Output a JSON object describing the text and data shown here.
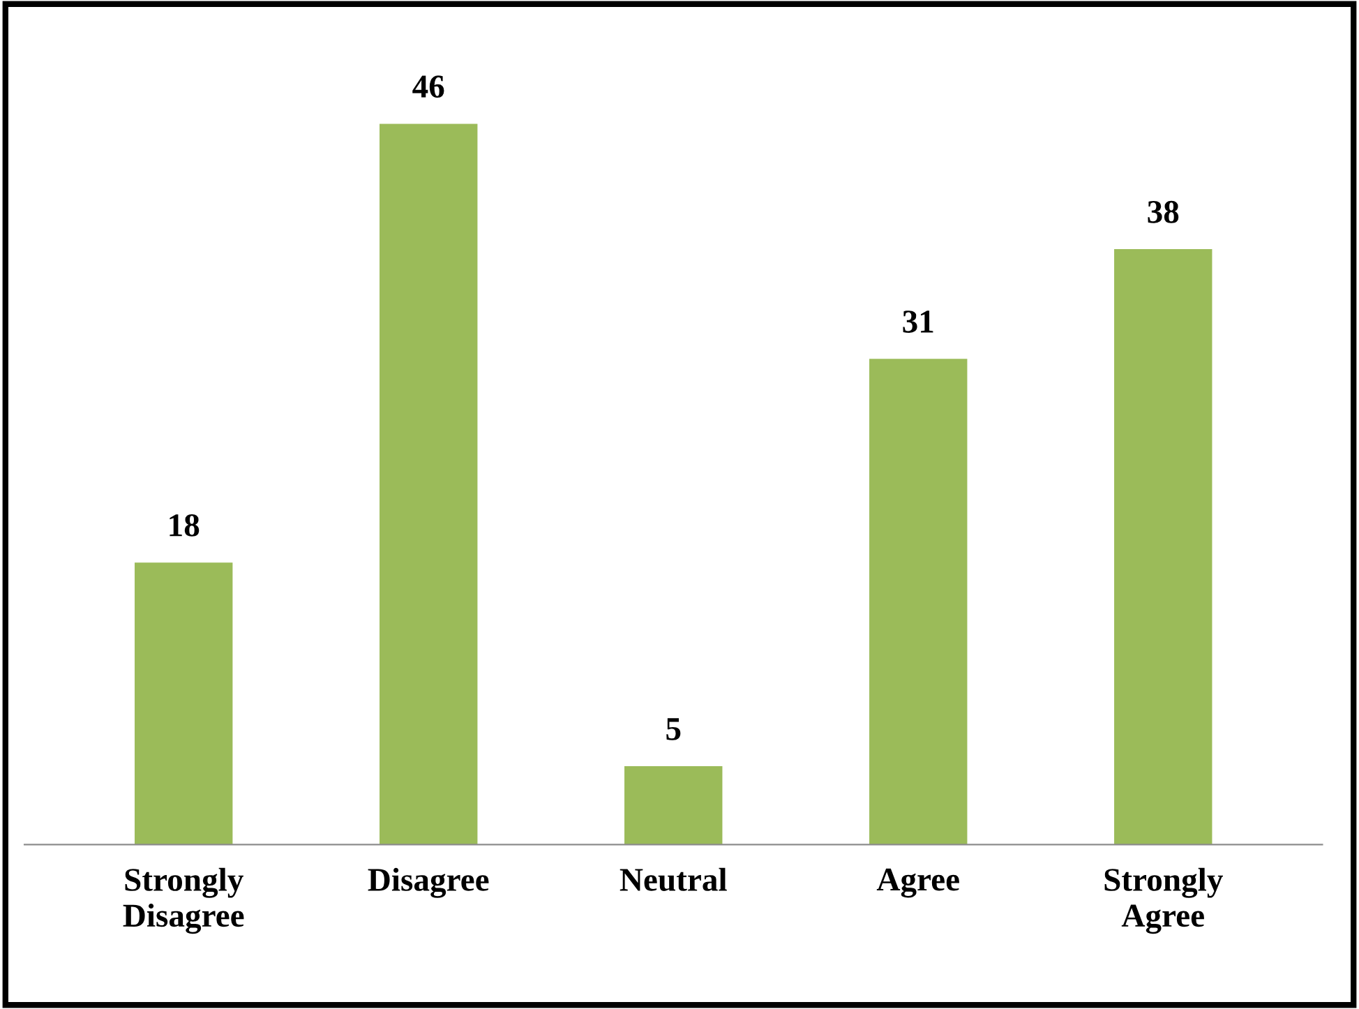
{
  "chart_data": {
    "type": "bar",
    "categories": [
      "Strongly\nDisagree",
      "Disagree",
      "Neutral",
      "Agree",
      "Strongly\nAgree"
    ],
    "values": [
      18,
      46,
      5,
      31,
      38
    ],
    "color": "#9bbb59",
    "data_labels": true,
    "grid": false,
    "legend": false
  }
}
